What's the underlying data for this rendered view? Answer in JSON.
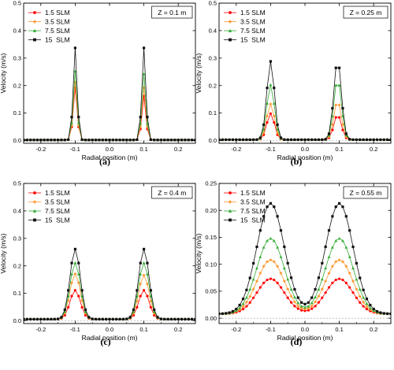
{
  "styles": {
    "colors": [
      "#ff0000",
      "#ff9933",
      "#33aa33",
      "#111111"
    ],
    "markers": [
      "circle",
      "diamond",
      "triangle",
      "square"
    ]
  },
  "chart_data": [
    {
      "panel": "(a)",
      "caption": "(a)",
      "type": "line",
      "annotation": "Z = 0.1 m",
      "xlabel": "Radial position (m)",
      "ylabel": "Velocity (m/s)",
      "xlim": [
        -0.25,
        0.25
      ],
      "ylim": [
        -0.01,
        0.5
      ],
      "xticks": [
        -0.2,
        -0.1,
        0.0,
        0.1,
        0.2
      ],
      "xtick_labels": [
        "-0.2",
        "-0.1",
        "0.0",
        "0.1",
        "0.2"
      ],
      "yticks": [
        0.0,
        0.1,
        0.2,
        0.3,
        0.4,
        0.5
      ],
      "ytick_labels": [
        "0.0",
        "0.1",
        "0.2",
        "0.3",
        "0.4",
        "0.5"
      ],
      "legend_position": "top-left",
      "grid": false,
      "shape": {
        "centers": [
          -0.1,
          0.1
        ],
        "width": 0.006,
        "base": 0.002
      },
      "series": [
        {
          "name": "1.5 SLM",
          "peaks": [
            0.19,
            0.16
          ]
        },
        {
          "name": "3.5 SLM",
          "peaks": [
            0.21,
            0.19
          ]
        },
        {
          "name": "7.5 SLM",
          "peaks": [
            0.25,
            0.24
          ]
        },
        {
          "name": "15  SLM",
          "peaks": [
            0.335,
            0.335
          ]
        }
      ]
    },
    {
      "panel": "(b)",
      "caption": "(b)",
      "type": "line",
      "annotation": "Z = 0.25 m",
      "xlabel": "Radial position (m)",
      "ylabel": "Velocity (m/s)",
      "xlim": [
        -0.25,
        0.25
      ],
      "ylim": [
        -0.01,
        0.5
      ],
      "xticks": [
        -0.2,
        -0.1,
        0.0,
        0.1,
        0.2
      ],
      "xtick_labels": [
        "-0.2",
        "-0.1",
        "0.0",
        "0.1",
        "0.2"
      ],
      "yticks": [
        0.0,
        0.1,
        0.2,
        0.3,
        0.4,
        0.5
      ],
      "ytick_labels": [
        "0.0",
        "0.1",
        "0.2",
        "0.3",
        "0.4",
        "0.5"
      ],
      "legend_position": "top-left",
      "grid": false,
      "shape": {
        "centers": [
          -0.1,
          0.095
        ],
        "width": 0.011,
        "base": 0.003
      },
      "series": [
        {
          "name": "1.5 SLM",
          "peaks": [
            0.095,
            0.09
          ]
        },
        {
          "name": "3.5 SLM",
          "peaks": [
            0.13,
            0.14
          ]
        },
        {
          "name": "7.5 SLM",
          "peaks": [
            0.2,
            0.22
          ]
        },
        {
          "name": "15  SLM",
          "peaks": [
            0.285,
            0.29
          ]
        }
      ]
    },
    {
      "panel": "(c)",
      "caption": "(c)",
      "type": "line",
      "annotation": "Z = 0.4 m",
      "xlabel": "Radial position (m)",
      "ylabel": "Velocity (m/s)",
      "xlim": [
        -0.25,
        0.25
      ],
      "ylim": [
        -0.01,
        0.5
      ],
      "xticks": [
        -0.2,
        -0.1,
        0.0,
        0.1,
        0.2
      ],
      "xtick_labels": [
        "-0.2",
        "-0.1",
        "0.0",
        "0.1",
        "0.2"
      ],
      "yticks": [
        0.0,
        0.1,
        0.2,
        0.3,
        0.4,
        0.5
      ],
      "ytick_labels": [
        "0.0",
        "0.1",
        "0.2",
        "0.3",
        "0.4",
        "0.5"
      ],
      "legend_position": "top-left",
      "grid": false,
      "shape": {
        "centers": [
          -0.1,
          0.1
        ],
        "width": 0.015,
        "base": 0.006
      },
      "series": [
        {
          "name": "1.5 SLM",
          "peaks": [
            0.105,
            0.105
          ]
        },
        {
          "name": "3.5 SLM",
          "peaks": [
            0.165,
            0.16
          ]
        },
        {
          "name": "7.5 SLM",
          "peaks": [
            0.205,
            0.205
          ]
        },
        {
          "name": "15  SLM",
          "peaks": [
            0.255,
            0.255
          ]
        }
      ]
    },
    {
      "panel": "(d)",
      "caption": "(d)",
      "type": "line",
      "annotation": "Z = 0.55 m",
      "xlabel": "Radial position (m)",
      "ylabel": "Velocity (m/s)",
      "xlim": [
        -0.25,
        0.25
      ],
      "ylim": [
        -0.01,
        0.25
      ],
      "xticks": [
        -0.2,
        -0.1,
        0.0,
        0.1,
        0.2
      ],
      "xtick_labels": [
        "-0.2",
        "-0.1",
        "0.0",
        "0.1",
        "0.2"
      ],
      "yticks": [
        0.0,
        0.05,
        0.1,
        0.15,
        0.2,
        0.25
      ],
      "ytick_labels": [
        "0.00",
        "0.05",
        "0.10",
        "0.15",
        "0.20",
        "0.25"
      ],
      "legend_position": "top-left",
      "grid": false,
      "shape": {
        "centers": [
          -0.1,
          0.1
        ],
        "width": 0.04,
        "base": 0.008
      },
      "series": [
        {
          "name": "1.5 SLM",
          "peaks": [
            0.065,
            0.065
          ]
        },
        {
          "name": "3.5 SLM",
          "peaks": [
            0.1,
            0.1
          ]
        },
        {
          "name": "7.5 SLM",
          "peaks": [
            0.14,
            0.14
          ]
        },
        {
          "name": "15  SLM",
          "peaks": [
            0.205,
            0.205
          ]
        }
      ]
    }
  ]
}
